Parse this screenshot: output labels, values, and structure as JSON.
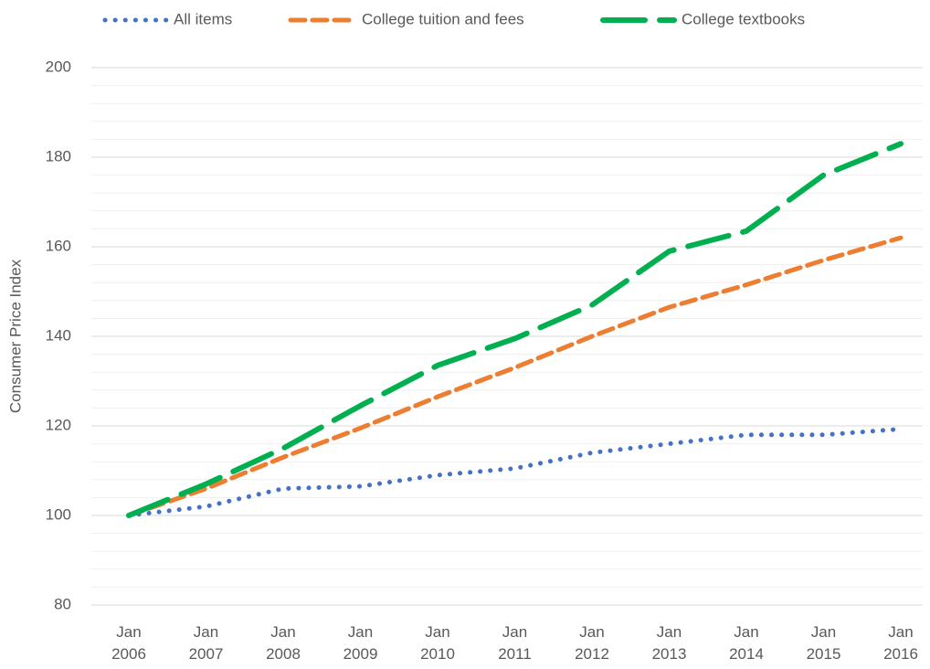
{
  "chart_data": {
    "type": "line",
    "y_label": "Consumer Price Index",
    "categories": [
      "Jan 2006",
      "Jan 2007",
      "Jan 2008",
      "Jan 2009",
      "Jan 2010",
      "Jan 2011",
      "Jan 2012",
      "Jan 2013",
      "Jan 2014",
      "Jan 2015",
      "Jan 2016"
    ],
    "series": [
      {
        "name": "All items",
        "color": "#4472c4",
        "style": "dotted",
        "values": [
          100,
          102,
          106,
          106.5,
          109,
          110.5,
          114,
          116,
          118,
          118,
          119.3
        ]
      },
      {
        "name": "College tuition and fees",
        "color": "#ed7d31",
        "style": "dashed",
        "values": [
          100,
          106,
          113,
          119.5,
          126.5,
          133,
          140,
          146.5,
          151.5,
          157,
          162
        ]
      },
      {
        "name": "College textbooks",
        "color": "#00b050",
        "style": "long-dashed",
        "values": [
          100,
          107,
          115,
          124.5,
          133.5,
          139.5,
          147,
          159,
          163.5,
          176,
          183
        ]
      }
    ],
    "ylim": [
      80,
      200
    ],
    "yticks": [
      80,
      100,
      120,
      140,
      160,
      180,
      200
    ],
    "minor_yticks": [
      84,
      88,
      92,
      96,
      104,
      108,
      112,
      116,
      124,
      128,
      132,
      136,
      144,
      148,
      152,
      156,
      164,
      168,
      172,
      176,
      184,
      188,
      192,
      196
    ],
    "grid": true,
    "legend": "top"
  }
}
